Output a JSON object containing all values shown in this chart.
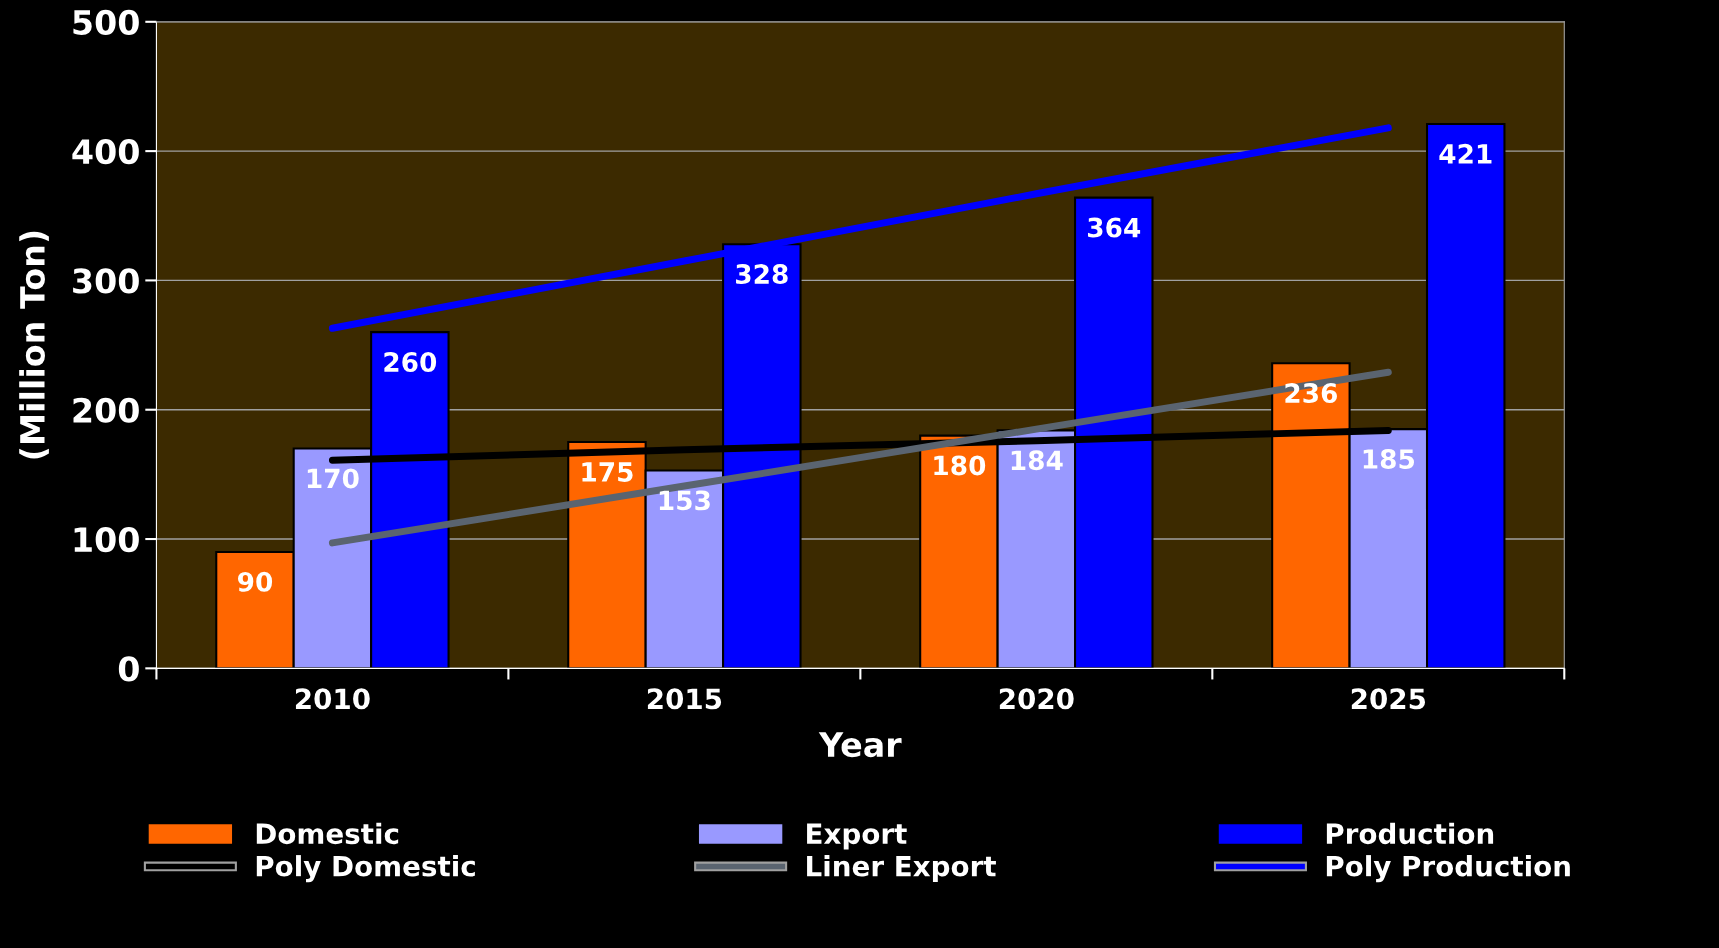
{
  "chart_data": {
    "type": "bar",
    "xlabel": "Year",
    "ylabel": "(Million Ton)",
    "categories": [
      "2010",
      "2015",
      "2020",
      "2025"
    ],
    "series": [
      {
        "name": "Domestic",
        "color": "#ff6600",
        "values": [
          90,
          175,
          180,
          236
        ],
        "value_labels": [
          "90",
          "175",
          "180",
          "236"
        ]
      },
      {
        "name": "Poly Domestic",
        "type": "line",
        "color": "#000000",
        "values": [
          161,
          169,
          176,
          184
        ]
      },
      {
        "name": "Export",
        "color": "#9999ff",
        "values": [
          170,
          153,
          184,
          185
        ],
        "value_labels": [
          "170",
          "153",
          "184",
          "185"
        ]
      },
      {
        "name": "Liner Export",
        "type": "line",
        "color": "#5a6470",
        "values": [
          97,
          141,
          185,
          229
        ]
      },
      {
        "name": "Production",
        "color": "#0000ff",
        "values": [
          260,
          328,
          364,
          421
        ],
        "value_labels": [
          "260",
          "328",
          "364",
          "421"
        ]
      },
      {
        "name": "Poly Production",
        "type": "line",
        "color": "#0000ff",
        "values": [
          263,
          315,
          367,
          418
        ]
      }
    ],
    "ylim": [
      0,
      500
    ],
    "yticks": [
      0,
      100,
      200,
      300,
      400,
      500
    ],
    "grid": "y",
    "legend": "bottom"
  }
}
